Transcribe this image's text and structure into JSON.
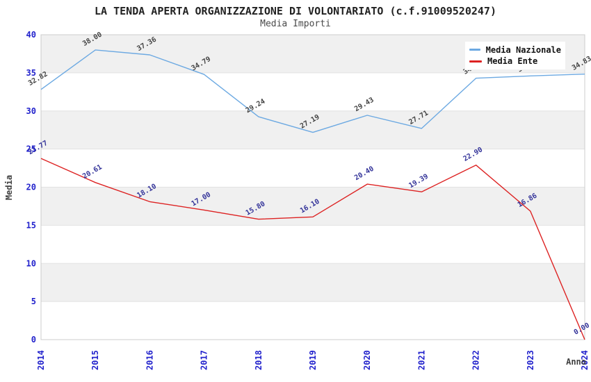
{
  "chart_data": {
    "type": "line",
    "title": "LA TENDA APERTA ORGANIZZAZIONE DI VOLONTARIATO (c.f.91009520247)",
    "subtitle": "Media Importi",
    "xlabel": "Anno",
    "ylabel": "Media",
    "x": [
      "2014",
      "2015",
      "2016",
      "2017",
      "2018",
      "2019",
      "2020",
      "2021",
      "2022",
      "2023",
      "2024"
    ],
    "series": [
      {
        "name": "Media Nazionale",
        "color": "#6CA9E2",
        "label_color": "#444444",
        "values": [
          32.82,
          38.0,
          37.36,
          34.79,
          29.24,
          27.19,
          29.43,
          27.71,
          34.3,
          34.6,
          34.83
        ]
      },
      {
        "name": "Media Ente",
        "color": "#DD2222",
        "label_color": "#333399",
        "values": [
          23.77,
          20.61,
          18.1,
          17.0,
          15.8,
          16.1,
          20.4,
          19.39,
          22.9,
          16.86,
          0.0
        ]
      }
    ],
    "ylim": [
      0,
      40
    ],
    "ytick_step": 5,
    "yticks": [
      0,
      5,
      10,
      15,
      20,
      25,
      30,
      35,
      40
    ],
    "grid": "horizontal-bands-alternating",
    "legend_position": "top-right",
    "colors": {
      "axis_tick_labels": "#2222CC",
      "axis_titles": "#404040",
      "band_fill": "#F0F0F0",
      "gridline": "#E2E2E2",
      "plot_border": "#CCCCCC"
    }
  }
}
